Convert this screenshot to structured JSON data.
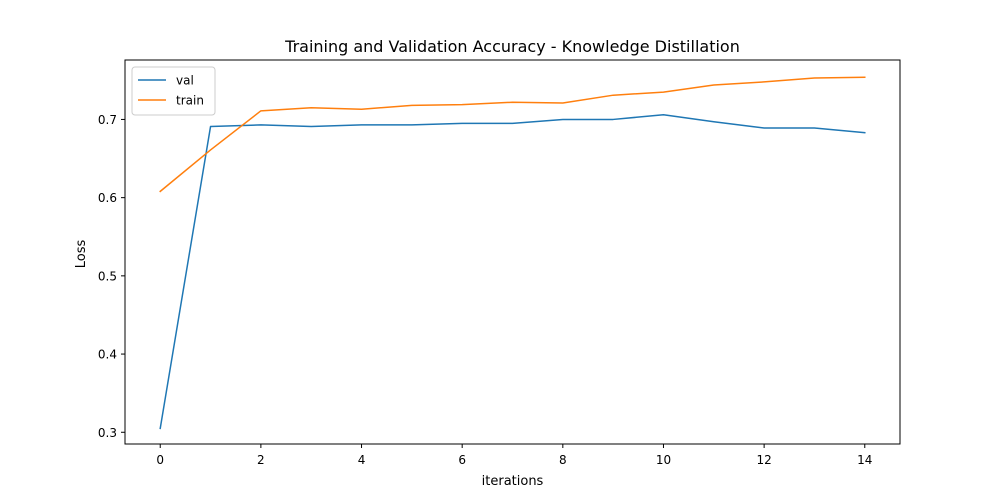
{
  "chart_data": {
    "type": "line",
    "title": "Training and Validation Accuracy - Knowledge Distillation",
    "xlabel": "iterations",
    "ylabel": "Loss",
    "xlim": [
      -0.7,
      14.7
    ],
    "ylim": [
      0.285,
      0.776
    ],
    "xticks": [
      0,
      2,
      4,
      6,
      8,
      10,
      12,
      14
    ],
    "xtick_labels": [
      "0",
      "2",
      "4",
      "6",
      "8",
      "10",
      "12",
      "14"
    ],
    "yticks": [
      0.3,
      0.4,
      0.5,
      0.6,
      0.7
    ],
    "ytick_labels": [
      "0.3",
      "0.4",
      "0.5",
      "0.6",
      "0.7"
    ],
    "grid": false,
    "legend_position": "top-left",
    "x": [
      0,
      1,
      2,
      3,
      4,
      5,
      6,
      7,
      8,
      9,
      10,
      11,
      12,
      13,
      14
    ],
    "series": [
      {
        "name": "val",
        "color": "#1f77b4",
        "values": [
          0.305,
          0.691,
          0.693,
          0.691,
          0.693,
          0.693,
          0.695,
          0.695,
          0.7,
          0.7,
          0.706,
          0.697,
          0.689,
          0.689,
          0.683
        ]
      },
      {
        "name": "train",
        "color": "#ff7f0e",
        "values": [
          0.608,
          0.661,
          0.711,
          0.715,
          0.713,
          0.718,
          0.719,
          0.722,
          0.721,
          0.731,
          0.735,
          0.744,
          0.748,
          0.753,
          0.754
        ]
      }
    ]
  }
}
